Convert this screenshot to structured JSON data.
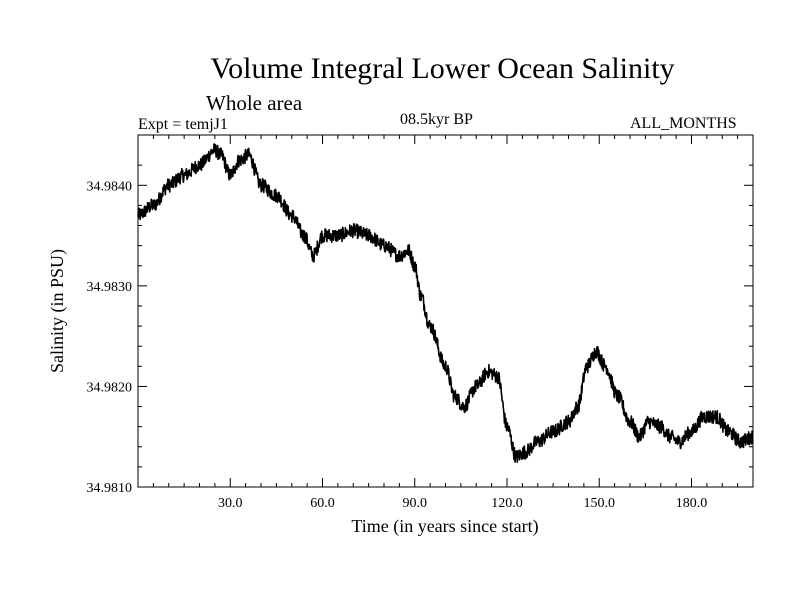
{
  "chart_data": {
    "type": "line",
    "title": "Volume Integral Lower Ocean Salinity",
    "subtitle": "Whole area",
    "annotations": {
      "experiment": "Expt = temjJ1",
      "period": "08.5kyr BP",
      "months": "ALL_MONTHS"
    },
    "xlabel": "Time (in years since start)",
    "ylabel": "Salinity (in PSU)",
    "xlim": [
      0,
      200
    ],
    "ylim": [
      34.981,
      34.9845
    ],
    "xticks": [
      30,
      60,
      90,
      120,
      150,
      180
    ],
    "xtick_labels": [
      "30.0",
      "60.0",
      "90.0",
      "120.0",
      "150.0",
      "180.0"
    ],
    "yticks": [
      34.981,
      34.982,
      34.983,
      34.984
    ],
    "ytick_labels": [
      "34.9810",
      "34.9820",
      "34.9830",
      "34.9840"
    ],
    "x_minor_step": 5,
    "y_minor_step": 0.0002,
    "grid": false,
    "noise_amplitude": 7e-05,
    "series": [
      {
        "name": "Salinity",
        "color": "#000000",
        "x": [
          0,
          5,
          10,
          15,
          20,
          25,
          27,
          30,
          33,
          36,
          40,
          45,
          50,
          54,
          57,
          60,
          65,
          70,
          75,
          80,
          85,
          88,
          90,
          92,
          95,
          100,
          103,
          106,
          110,
          114,
          117,
          120,
          123,
          126,
          130,
          135,
          140,
          143,
          146,
          149,
          152,
          156,
          160,
          163,
          166,
          170,
          173,
          176,
          180,
          184,
          188,
          192,
          196,
          200
        ],
        "y": [
          34.9837,
          34.9838,
          34.984,
          34.9841,
          34.9842,
          34.98435,
          34.9843,
          34.9841,
          34.98425,
          34.9843,
          34.984,
          34.9839,
          34.9837,
          34.9835,
          34.9833,
          34.9835,
          34.9835,
          34.98355,
          34.9835,
          34.9834,
          34.9833,
          34.98335,
          34.9832,
          34.9829,
          34.9826,
          34.9822,
          34.9819,
          34.9818,
          34.982,
          34.98215,
          34.9821,
          34.9816,
          34.9813,
          34.98135,
          34.98145,
          34.98155,
          34.98165,
          34.9818,
          34.9822,
          34.98235,
          34.9822,
          34.9819,
          34.98165,
          34.9815,
          34.98165,
          34.9816,
          34.9815,
          34.98145,
          34.98155,
          34.9817,
          34.9817,
          34.98155,
          34.98145,
          34.9815
        ]
      }
    ]
  }
}
